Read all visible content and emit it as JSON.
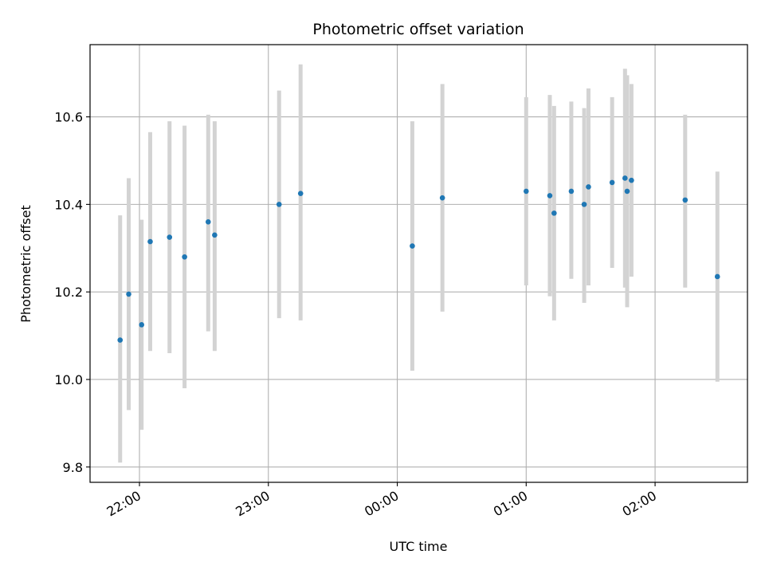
{
  "chart_data": {
    "type": "scatter",
    "title": "Photometric offset variation",
    "xlabel": "UTC time",
    "ylabel": "Photometric offset",
    "x_is_time": true,
    "xlim": [
      "21:37",
      "02:43"
    ],
    "ylim": [
      9.765,
      10.765
    ],
    "xticks": [
      "22:00",
      "23:00",
      "00:00",
      "01:00",
      "02:00"
    ],
    "yticks": [
      "9.8",
      "10.0",
      "10.2",
      "10.4",
      "10.6"
    ],
    "grid": true,
    "colors": {
      "point": "#1f77b4",
      "errorbar": "#d3d3d3",
      "grid": "#b0b0b0",
      "axes": "#000000"
    },
    "series": [
      {
        "points": [
          {
            "x": "21:51",
            "y": 10.09,
            "lo": 9.81,
            "hi": 10.375
          },
          {
            "x": "21:55",
            "y": 10.195,
            "lo": 9.93,
            "hi": 10.46
          },
          {
            "x": "22:01",
            "y": 10.125,
            "lo": 9.885,
            "hi": 10.365
          },
          {
            "x": "22:05",
            "y": 10.315,
            "lo": 10.065,
            "hi": 10.565
          },
          {
            "x": "22:14",
            "y": 10.325,
            "lo": 10.06,
            "hi": 10.59
          },
          {
            "x": "22:21",
            "y": 10.28,
            "lo": 9.98,
            "hi": 10.58
          },
          {
            "x": "22:32",
            "y": 10.36,
            "lo": 10.11,
            "hi": 10.605
          },
          {
            "x": "22:35",
            "y": 10.33,
            "lo": 10.065,
            "hi": 10.59
          },
          {
            "x": "23:05",
            "y": 10.4,
            "lo": 10.14,
            "hi": 10.66
          },
          {
            "x": "23:15",
            "y": 10.425,
            "lo": 10.135,
            "hi": 10.72
          },
          {
            "x": "00:07",
            "y": 10.305,
            "lo": 10.02,
            "hi": 10.59
          },
          {
            "x": "00:21",
            "y": 10.415,
            "lo": 10.155,
            "hi": 10.675
          },
          {
            "x": "01:00",
            "y": 10.43,
            "lo": 10.215,
            "hi": 10.645
          },
          {
            "x": "01:11",
            "y": 10.42,
            "lo": 10.19,
            "hi": 10.65
          },
          {
            "x": "01:13",
            "y": 10.38,
            "lo": 10.135,
            "hi": 10.625
          },
          {
            "x": "01:21",
            "y": 10.43,
            "lo": 10.23,
            "hi": 10.635
          },
          {
            "x": "01:27",
            "y": 10.4,
            "lo": 10.175,
            "hi": 10.62
          },
          {
            "x": "01:29",
            "y": 10.44,
            "lo": 10.215,
            "hi": 10.665
          },
          {
            "x": "01:40",
            "y": 10.45,
            "lo": 10.255,
            "hi": 10.645
          },
          {
            "x": "01:46",
            "y": 10.46,
            "lo": 10.21,
            "hi": 10.71
          },
          {
            "x": "01:47",
            "y": 10.43,
            "lo": 10.165,
            "hi": 10.695
          },
          {
            "x": "01:49",
            "y": 10.455,
            "lo": 10.235,
            "hi": 10.675
          },
          {
            "x": "02:14",
            "y": 10.41,
            "lo": 10.21,
            "hi": 10.605
          },
          {
            "x": "02:29",
            "y": 10.235,
            "lo": 9.995,
            "hi": 10.475
          }
        ]
      }
    ]
  }
}
